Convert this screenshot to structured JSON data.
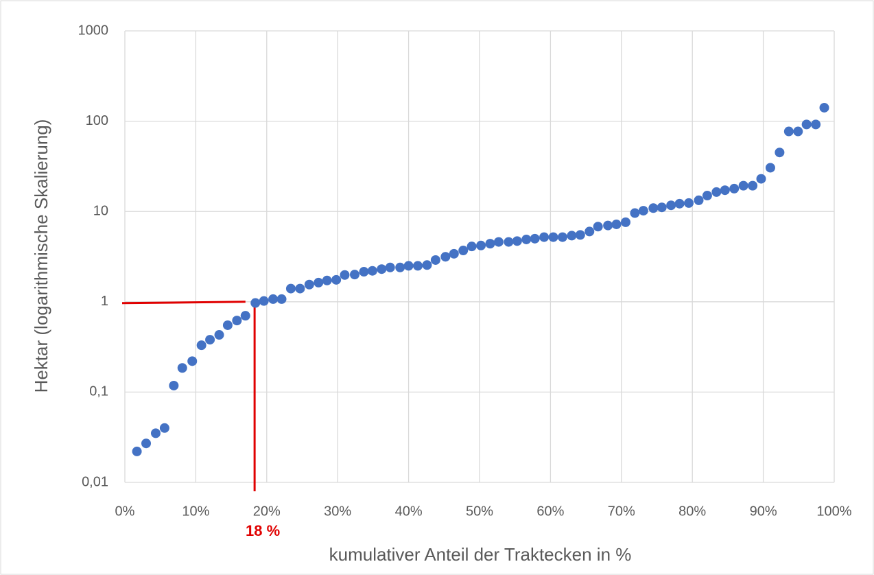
{
  "chart_data": {
    "type": "scatter",
    "xlabel": "kumulativer Anteil der Traktecken in %",
    "ylabel": "Hektar (logarithmische Skalierung)",
    "color": "#4472c4",
    "log_y": true,
    "grid": true,
    "xlim": [
      0,
      100
    ],
    "xticks": [
      {
        "value": 0,
        "label": "0%"
      },
      {
        "value": 10,
        "label": "10%"
      },
      {
        "value": 20,
        "label": "20%"
      },
      {
        "value": 30,
        "label": "30%"
      },
      {
        "value": 40,
        "label": "40%"
      },
      {
        "value": 50,
        "label": "50%"
      },
      {
        "value": 60,
        "label": "60%"
      },
      {
        "value": 70,
        "label": "70%"
      },
      {
        "value": 80,
        "label": "80%"
      },
      {
        "value": 90,
        "label": "90%"
      },
      {
        "value": 100,
        "label": "100%"
      }
    ],
    "ylim": [
      0.01,
      1000
    ],
    "yticks": [
      {
        "value": 0.01,
        "label": "0,01"
      },
      {
        "value": 0.1,
        "label": "0,1"
      },
      1,
      10,
      100,
      1000
    ],
    "x": [
      1.7,
      3.0,
      4.35,
      5.6,
      6.9,
      8.1,
      9.5,
      10.8,
      12.0,
      13.3,
      14.5,
      15.8,
      17.0,
      18.4,
      19.6,
      20.9,
      22.1,
      23.4,
      24.7,
      26.0,
      27.3,
      28.5,
      29.8,
      31.0,
      32.4,
      33.7,
      34.9,
      36.2,
      37.4,
      38.8,
      40.0,
      41.3,
      42.6,
      43.8,
      45.2,
      46.4,
      47.7,
      48.9,
      50.2,
      51.5,
      52.7,
      54.1,
      55.3,
      56.6,
      57.8,
      59.1,
      60.4,
      61.7,
      63.0,
      64.2,
      65.5,
      66.7,
      68.1,
      69.3,
      70.6,
      71.9,
      73.1,
      74.5,
      75.7,
      77.0,
      78.2,
      79.5,
      80.9,
      82.1,
      83.4,
      84.6,
      85.9,
      87.2,
      88.5,
      89.7,
      91.0,
      92.3,
      93.6,
      94.9,
      96.1,
      97.4,
      98.6
    ],
    "values": [
      0.022,
      0.027,
      0.035,
      0.04,
      0.118,
      0.185,
      0.22,
      0.33,
      0.38,
      0.43,
      0.55,
      0.62,
      0.7,
      0.97,
      1.02,
      1.07,
      1.07,
      1.4,
      1.4,
      1.55,
      1.63,
      1.72,
      1.75,
      1.98,
      2.0,
      2.15,
      2.2,
      2.3,
      2.4,
      2.4,
      2.5,
      2.5,
      2.55,
      2.9,
      3.15,
      3.4,
      3.7,
      4.1,
      4.2,
      4.4,
      4.6,
      4.6,
      4.7,
      4.9,
      5.0,
      5.2,
      5.2,
      5.2,
      5.4,
      5.5,
      6.0,
      6.8,
      7.0,
      7.2,
      7.6,
      9.6,
      10.2,
      10.9,
      11.1,
      11.7,
      12.2,
      12.4,
      13.3,
      15.0,
      16.4,
      17.2,
      17.9,
      19.3,
      19.3,
      23,
      30.5,
      45,
      77,
      77,
      92,
      92,
      141
    ],
    "annotation": {
      "text": "18 %",
      "x": 18,
      "y": 1,
      "color": "#e00000"
    }
  }
}
